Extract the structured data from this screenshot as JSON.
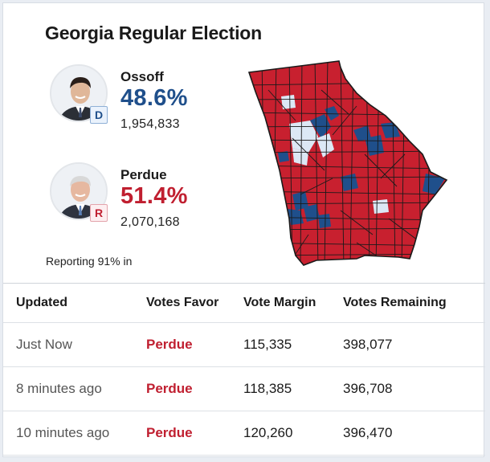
{
  "title": "Georgia Regular Election",
  "candidates": [
    {
      "name": "Ossoff",
      "party": "D",
      "percent": "48.6%",
      "votes": "1,954,833",
      "color": "#1f4f8b"
    },
    {
      "name": "Perdue",
      "party": "R",
      "percent": "51.4%",
      "votes": "2,070,168",
      "color": "#c01f30"
    }
  ],
  "reporting": "Reporting 91% in",
  "map": {
    "colors": {
      "republican": "#c8202f",
      "democrat": "#1f4f8b",
      "light": "#dce8f5",
      "border": "#1a1a1a"
    }
  },
  "table": {
    "headers": [
      "Updated",
      "Votes Favor",
      "Vote Margin",
      "Votes Remaining"
    ],
    "rows": [
      {
        "updated": "Just Now",
        "favor": "Perdue",
        "margin": "115,335",
        "remaining": "398,077"
      },
      {
        "updated": "8 minutes ago",
        "favor": "Perdue",
        "margin": "118,385",
        "remaining": "396,708"
      },
      {
        "updated": "10 minutes ago",
        "favor": "Perdue",
        "margin": "120,260",
        "remaining": "396,470"
      }
    ]
  }
}
